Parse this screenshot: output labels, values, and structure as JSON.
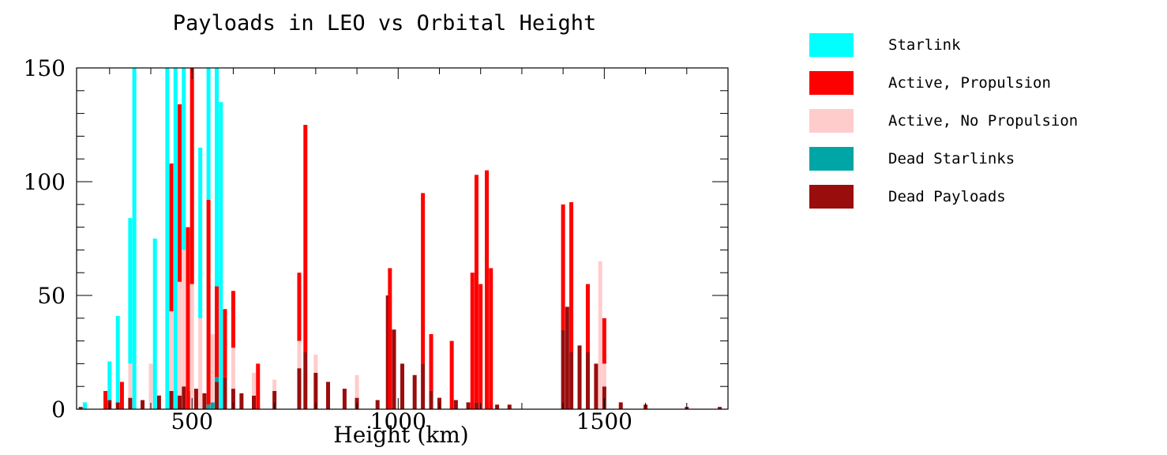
{
  "chart_data": {
    "type": "bar",
    "stacked": true,
    "title": "Payloads in LEO vs Orbital Height",
    "xlabel": "Height (km)",
    "ylabel": "",
    "xlim": [
      220,
      1800
    ],
    "ylim": [
      0,
      150
    ],
    "xticks": [
      500,
      1000,
      1500
    ],
    "yticks": [
      0,
      50,
      100,
      150
    ],
    "legend_position": "right",
    "series": [
      {
        "name": "Dead Payloads",
        "color": "#990d0d",
        "points": [
          [
            230,
            1
          ],
          [
            300,
            4
          ],
          [
            320,
            3
          ],
          [
            350,
            5
          ],
          [
            380,
            4
          ],
          [
            420,
            6
          ],
          [
            450,
            8
          ],
          [
            470,
            6
          ],
          [
            480,
            10
          ],
          [
            495,
            8
          ],
          [
            510,
            9
          ],
          [
            530,
            7
          ],
          [
            560,
            12
          ],
          [
            580,
            14
          ],
          [
            600,
            9
          ],
          [
            620,
            7
          ],
          [
            650,
            6
          ],
          [
            700,
            8
          ],
          [
            760,
            18
          ],
          [
            775,
            25
          ],
          [
            800,
            16
          ],
          [
            830,
            12
          ],
          [
            870,
            9
          ],
          [
            900,
            5
          ],
          [
            950,
            4
          ],
          [
            975,
            50
          ],
          [
            990,
            35
          ],
          [
            1010,
            20
          ],
          [
            1040,
            15
          ],
          [
            1060,
            20
          ],
          [
            1080,
            8
          ],
          [
            1100,
            5
          ],
          [
            1140,
            4
          ],
          [
            1170,
            3
          ],
          [
            1190,
            3
          ],
          [
            1240,
            2
          ],
          [
            1270,
            2
          ],
          [
            1400,
            35
          ],
          [
            1410,
            45
          ],
          [
            1420,
            25
          ],
          [
            1440,
            28
          ],
          [
            1460,
            25
          ],
          [
            1480,
            20
          ],
          [
            1500,
            10
          ],
          [
            1540,
            3
          ],
          [
            1600,
            2
          ],
          [
            1700,
            1
          ],
          [
            1780,
            1
          ]
        ]
      },
      {
        "name": "Dead Starlinks",
        "color": "#00a5a5",
        "points": [
          [
            540,
            2
          ],
          [
            550,
            3
          ],
          [
            560,
            2
          ]
        ]
      },
      {
        "name": "Active, No Propulsion",
        "color": "#ffcccc",
        "points": [
          [
            350,
            15
          ],
          [
            400,
            20
          ],
          [
            450,
            35
          ],
          [
            470,
            50
          ],
          [
            480,
            60
          ],
          [
            500,
            55
          ],
          [
            520,
            40
          ],
          [
            550,
            30
          ],
          [
            600,
            18
          ],
          [
            650,
            10
          ],
          [
            700,
            5
          ],
          [
            760,
            12
          ],
          [
            800,
            8
          ],
          [
            900,
            10
          ],
          [
            1490,
            65
          ],
          [
            1500,
            10
          ]
        ]
      },
      {
        "name": "Active, Propulsion",
        "color": "#ff0000",
        "points": [
          [
            290,
            8
          ],
          [
            330,
            12
          ],
          [
            450,
            65
          ],
          [
            470,
            78
          ],
          [
            490,
            80
          ],
          [
            500,
            100
          ],
          [
            540,
            90
          ],
          [
            560,
            40
          ],
          [
            580,
            30
          ],
          [
            600,
            25
          ],
          [
            660,
            20
          ],
          [
            760,
            30
          ],
          [
            775,
            100
          ],
          [
            980,
            62
          ],
          [
            1060,
            75
          ],
          [
            1080,
            25
          ],
          [
            1130,
            30
          ],
          [
            1180,
            60
          ],
          [
            1190,
            100
          ],
          [
            1200,
            55
          ],
          [
            1215,
            105
          ],
          [
            1225,
            62
          ],
          [
            1400,
            55
          ],
          [
            1420,
            66
          ],
          [
            1460,
            30
          ],
          [
            1500,
            20
          ]
        ]
      },
      {
        "name": "Starlink",
        "color": "#00ffff",
        "points": [
          [
            240,
            3
          ],
          [
            300,
            17
          ],
          [
            320,
            38
          ],
          [
            350,
            64
          ],
          [
            360,
            150
          ],
          [
            410,
            75
          ],
          [
            440,
            150
          ],
          [
            460,
            150
          ],
          [
            480,
            150
          ],
          [
            520,
            75
          ],
          [
            540,
            150
          ],
          [
            560,
            150
          ],
          [
            570,
            135
          ]
        ]
      }
    ]
  }
}
